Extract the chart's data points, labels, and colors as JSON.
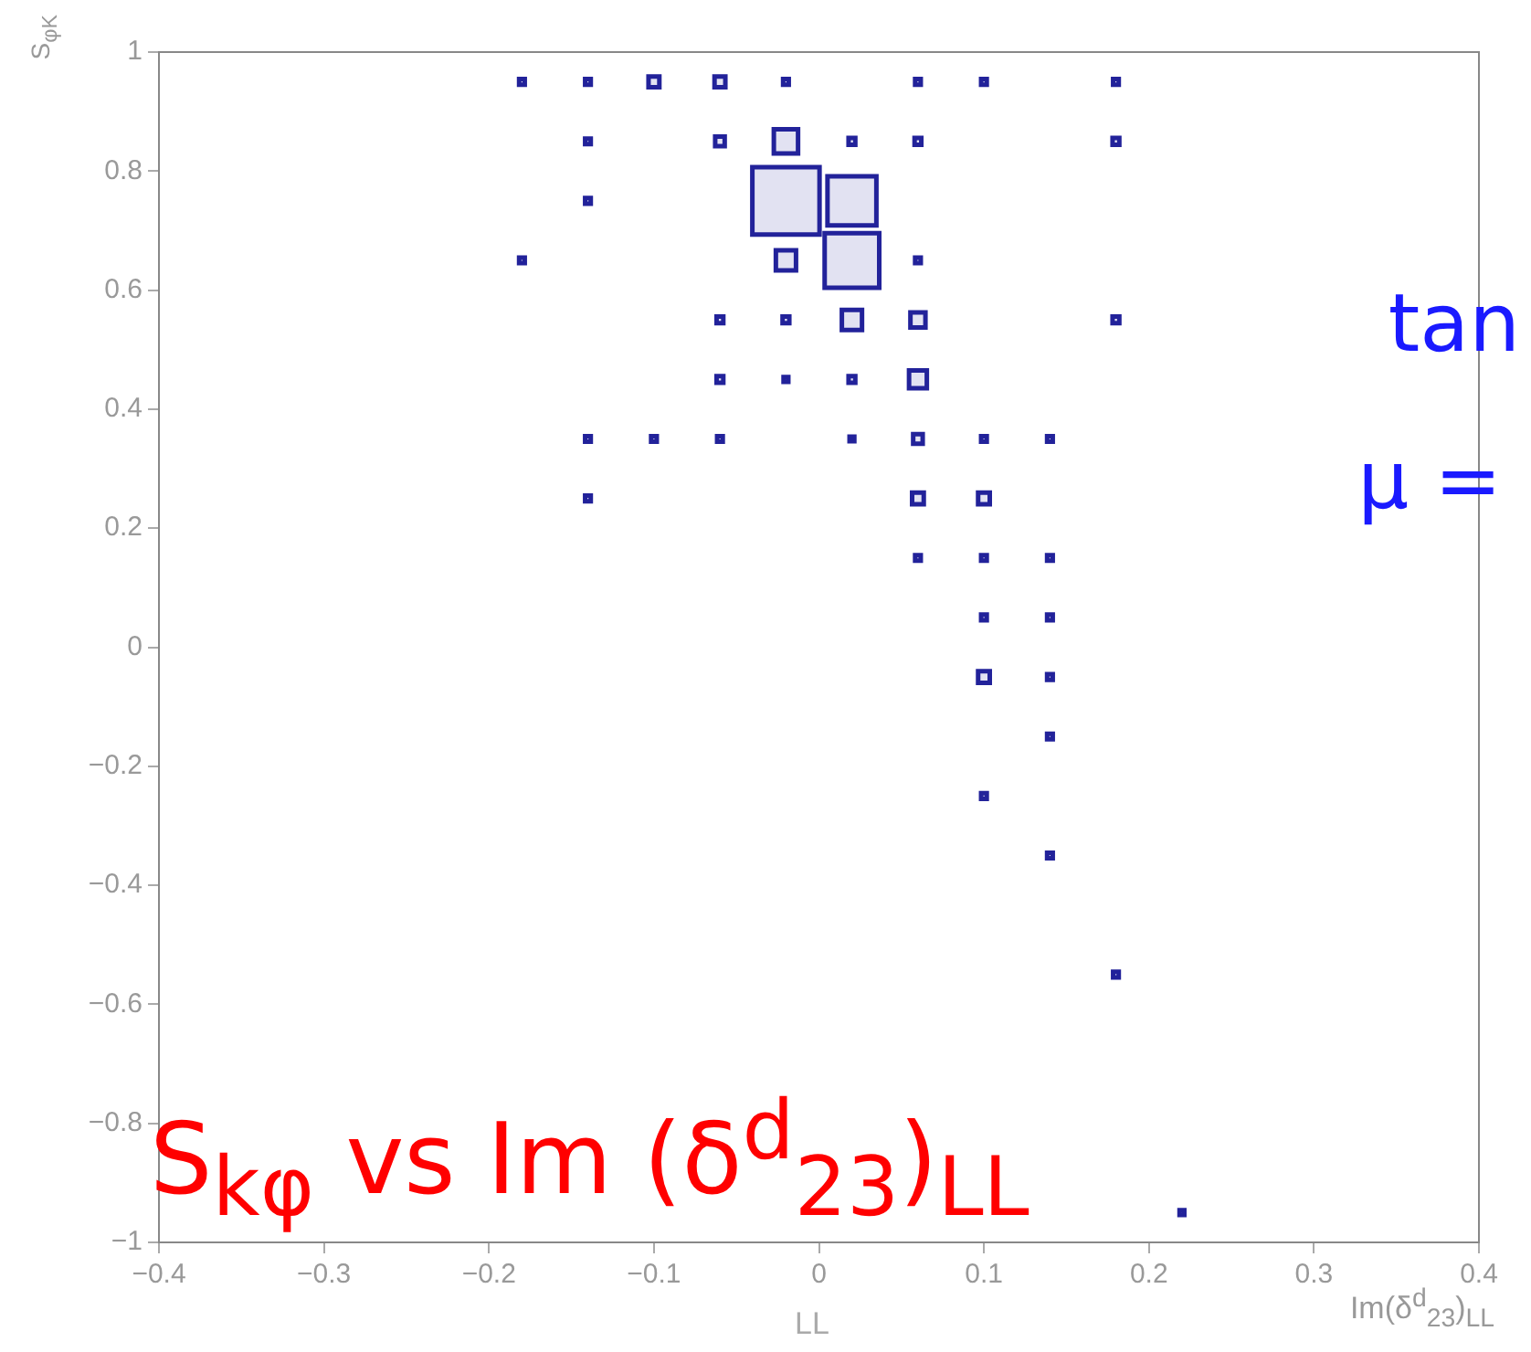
{
  "chart_data": {
    "type": "bubble",
    "xlabel": "Im(δ$^{d}$$_{23}$)$_{LL}$",
    "ylabel": "S$_{φK}$",
    "annotations": [
      "tan",
      "μ =",
      "S$_{kφ}$ vs Im (δ$^{d}$$_{23}$)$_{LL}$",
      "LL"
    ],
    "x": [
      -0.18,
      -0.14,
      -0.1,
      -0.06,
      -0.02,
      0.06,
      0.1,
      0.18,
      -0.14,
      -0.06,
      -0.02,
      0.02,
      0.06,
      0.18,
      -0.14,
      -0.02,
      0.02,
      -0.18,
      -0.02,
      0.02,
      0.06,
      -0.06,
      -0.02,
      0.02,
      0.06,
      0.18,
      -0.06,
      -0.02,
      0.02,
      0.06,
      -0.14,
      -0.1,
      -0.06,
      0.02,
      0.06,
      0.1,
      0.14,
      -0.14,
      0.06,
      0.1,
      0.06,
      0.1,
      0.14,
      0.1,
      0.14,
      0.1,
      0.14,
      0.14,
      0.1,
      0.14,
      0.18,
      0.22
    ],
    "values": [
      0.95,
      0.95,
      0.95,
      0.95,
      0.95,
      0.95,
      0.95,
      0.95,
      0.85,
      0.85,
      0.85,
      0.85,
      0.85,
      0.85,
      0.75,
      0.75,
      0.75,
      0.65,
      0.65,
      0.65,
      0.65,
      0.55,
      0.55,
      0.55,
      0.55,
      0.55,
      0.45,
      0.45,
      0.45,
      0.45,
      0.35,
      0.35,
      0.35,
      0.35,
      0.35,
      0.35,
      0.35,
      0.25,
      0.25,
      0.25,
      0.15,
      0.15,
      0.15,
      0.05,
      0.05,
      -0.05,
      -0.05,
      -0.15,
      -0.25,
      -0.35,
      -0.55,
      -0.95
    ],
    "sizes": [
      0.007,
      0.007,
      0.026,
      0.026,
      0.007,
      0.007,
      0.007,
      0.007,
      0.007,
      0.02,
      0.13,
      0.01,
      0.01,
      0.01,
      0.007,
      1,
      0.53,
      0.007,
      0.09,
      0.66,
      0.007,
      0.01,
      0.01,
      0.09,
      0.05,
      0.01,
      0.01,
      0.005,
      0.01,
      0.07,
      0.007,
      0.007,
      0.007,
      0.005,
      0.02,
      0.007,
      0.007,
      0.007,
      0.03,
      0.03,
      0.007,
      0.007,
      0.007,
      0.007,
      0.007,
      0.03,
      0.007,
      0.007,
      0.007,
      0.007,
      0.007,
      0.005
    ],
    "color": "#22229a",
    "marker": "square",
    "grid": false,
    "xlim": [
      -0.4,
      0.4
    ],
    "xticks": [
      -0.4,
      -0.3,
      -0.2,
      -0.1,
      0,
      0.1,
      0.2,
      0.3,
      0.4
    ],
    "ylim": [
      -1,
      1
    ],
    "yticks": [
      -1,
      -0.8,
      -0.6,
      -0.4,
      -0.2,
      0,
      0.2,
      0.4,
      0.6,
      0.8,
      1
    ]
  }
}
